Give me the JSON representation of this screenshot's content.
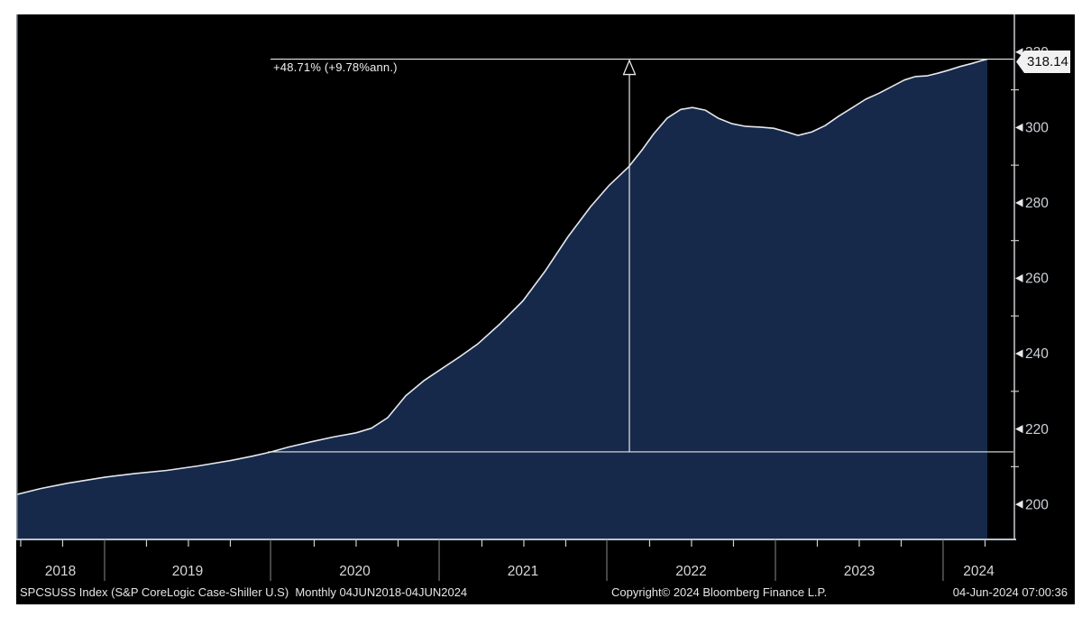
{
  "window": {
    "page_bg": "#ffffff",
    "panel_bg": "#000000"
  },
  "chart_data": {
    "type": "area",
    "security": "SPCSUSS Index",
    "description": "S&P CoreLogic Case-Shiller U.S.",
    "frequency": "Monthly",
    "date_range": "04JUN2018-04JUN2024",
    "last_price": 318.14,
    "last_price_label": "318.14",
    "colors": {
      "area_fill": "#16294a",
      "line": "#e4e8ef",
      "axis": "#b9c2cd",
      "tick_label": "#ccd2d9",
      "year_label": "#d8d8d8",
      "measure": "#e8e8e8",
      "flag_bg": "#f1f1f1",
      "flag_text": "#0d0d0d"
    },
    "y_axis": {
      "side": "right",
      "min": 190.7,
      "max": 330,
      "minor_step": 10,
      "major_step": 20,
      "major_labels": [
        "200",
        "220",
        "240",
        "260",
        "280",
        "300",
        "320"
      ],
      "grid": false
    },
    "x_axis": {
      "year_labels": [
        "2018",
        "2019",
        "2020",
        "2021",
        "2022",
        "2023",
        "2024"
      ],
      "year_boundaries_frac": [
        0.0885,
        0.2548,
        0.4237,
        0.5917,
        0.7606,
        0.9286
      ],
      "quarter_step_frac": 0.042005,
      "grid": false
    },
    "annotation": {
      "label": "+48.71% (+9.78%ann.)",
      "pct_change": 48.71,
      "pct_annualized": 9.78,
      "top_value": 318.14,
      "baseline_value": 213.93,
      "start_frac": 0.2548,
      "arrow_frac": 0.6143,
      "end_frac": 0.999
    },
    "series": [
      {
        "name": "SPCSUSS Index (S&P CoreLogic Case-Shiller U.S)",
        "points": [
          [
            0.0,
            202.6
          ],
          [
            0.0244,
            204.2
          ],
          [
            0.0515,
            205.6
          ],
          [
            0.0885,
            207.2
          ],
          [
            0.1192,
            208.2
          ],
          [
            0.1509,
            209.0
          ],
          [
            0.1825,
            210.2
          ],
          [
            0.2141,
            211.6
          ],
          [
            0.2367,
            212.8
          ],
          [
            0.2548,
            213.9
          ],
          [
            0.2728,
            215.2
          ],
          [
            0.2954,
            216.6
          ],
          [
            0.318,
            217.9
          ],
          [
            0.3406,
            219.0
          ],
          [
            0.3559,
            220.2
          ],
          [
            0.3722,
            223.0
          ],
          [
            0.3902,
            228.8
          ],
          [
            0.4083,
            232.8
          ],
          [
            0.4264,
            236.0
          ],
          [
            0.4444,
            239.2
          ],
          [
            0.4625,
            242.6
          ],
          [
            0.4851,
            248.0
          ],
          [
            0.5077,
            254.0
          ],
          [
            0.5302,
            262.0
          ],
          [
            0.5528,
            271.0
          ],
          [
            0.5754,
            279.0
          ],
          [
            0.5935,
            284.5
          ],
          [
            0.6134,
            289.5
          ],
          [
            0.6269,
            294.0
          ],
          [
            0.6387,
            298.3
          ],
          [
            0.6522,
            302.5
          ],
          [
            0.6658,
            304.8
          ],
          [
            0.6775,
            305.3
          ],
          [
            0.6902,
            304.6
          ],
          [
            0.7037,
            302.4
          ],
          [
            0.7173,
            301.0
          ],
          [
            0.7308,
            300.3
          ],
          [
            0.7453,
            300.1
          ],
          [
            0.7588,
            299.8
          ],
          [
            0.7724,
            298.8
          ],
          [
            0.7832,
            297.9
          ],
          [
            0.7968,
            298.8
          ],
          [
            0.8103,
            300.5
          ],
          [
            0.8239,
            303.0
          ],
          [
            0.8374,
            305.2
          ],
          [
            0.851,
            307.5
          ],
          [
            0.8645,
            309.1
          ],
          [
            0.8781,
            311.0
          ],
          [
            0.8898,
            312.6
          ],
          [
            0.9007,
            313.5
          ],
          [
            0.9124,
            313.7
          ],
          [
            0.9232,
            314.4
          ],
          [
            0.9341,
            315.2
          ],
          [
            0.9458,
            316.2
          ],
          [
            0.9576,
            317.0
          ],
          [
            0.9666,
            317.7
          ],
          [
            0.9729,
            318.14
          ]
        ]
      }
    ]
  },
  "footer": {
    "left": "SPCSUSS Index (S&P CoreLogic Case-Shiller U.S)  Monthly 04JUN2018-04JUN2024",
    "copyright": "Copyright© 2024 Bloomberg Finance L.P.",
    "datetime": "04-Jun-2024 07:00:36"
  }
}
